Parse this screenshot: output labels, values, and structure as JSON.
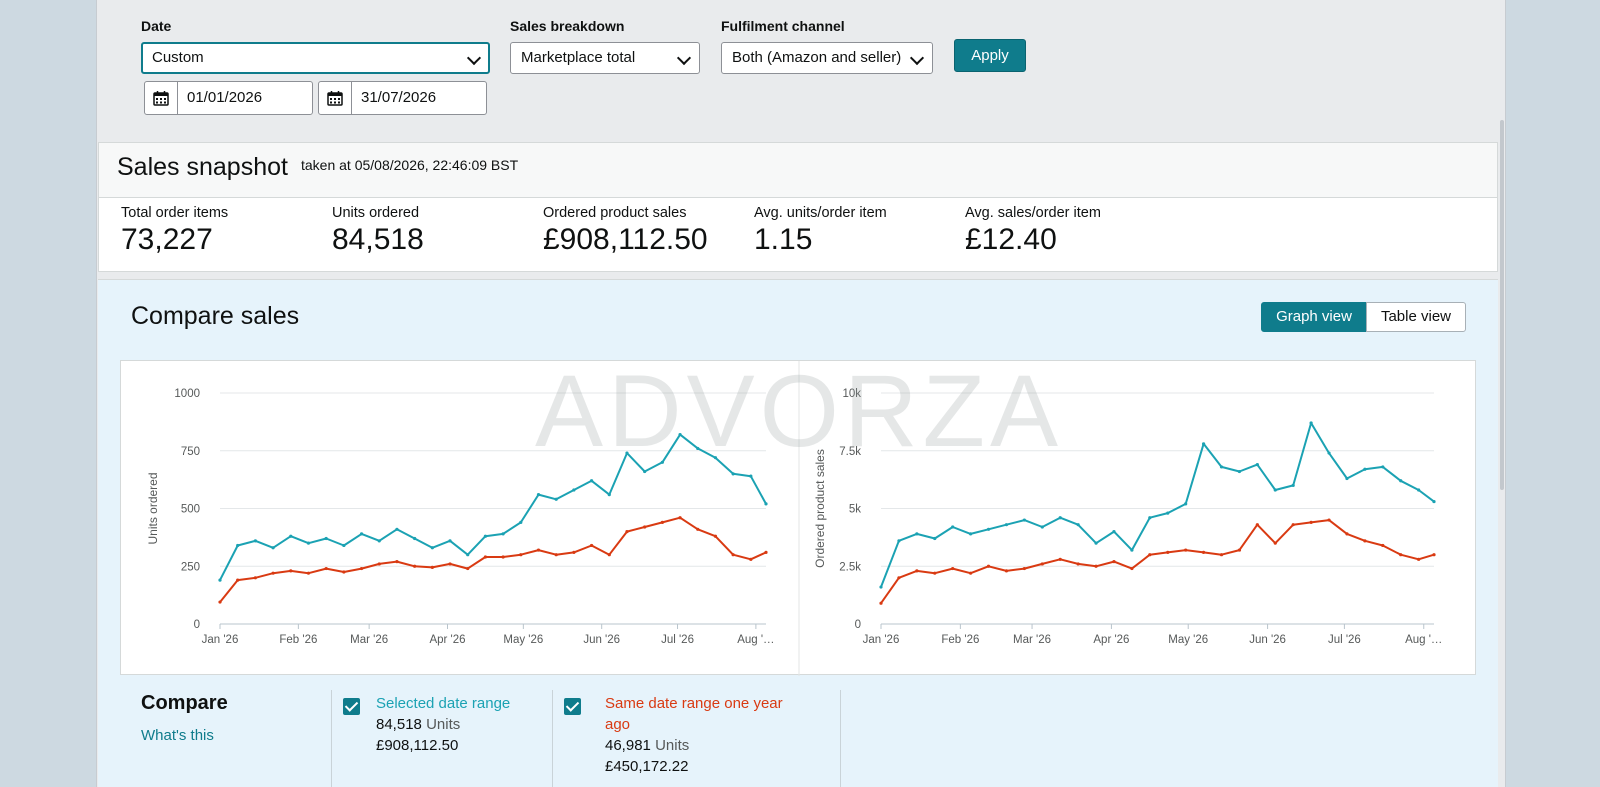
{
  "filters": {
    "date": {
      "label": "Date",
      "value": "Custom",
      "start": "01/01/2026",
      "end": "31/07/2026"
    },
    "breakdown": {
      "label": "Sales breakdown",
      "value": "Marketplace total"
    },
    "channel": {
      "label": "Fulfilment channel",
      "value": "Both (Amazon and seller)"
    },
    "apply_label": "Apply"
  },
  "snapshot": {
    "title": "Sales snapshot",
    "taken_at": "taken at 05/08/2026, 22:46:09 BST",
    "metrics": [
      {
        "label": "Total order items",
        "value": "73,227"
      },
      {
        "label": "Units ordered",
        "value": "84,518"
      },
      {
        "label": "Ordered product sales",
        "value": "£908,112.50"
      },
      {
        "label": "Avg. units/order item",
        "value": "1.15"
      },
      {
        "label": "Avg. sales/order item",
        "value": "£12.40"
      }
    ]
  },
  "compare": {
    "title": "Compare sales",
    "view_toggle": {
      "graph": "Graph view",
      "table": "Table view"
    },
    "watermark": "ADVORZA",
    "legend_title": "Compare",
    "whats_this": "What's this",
    "series": [
      {
        "name": "Selected date range",
        "units": "84,518",
        "units_label": "Units",
        "sales": "£908,112.50",
        "color": "#1ba2b3"
      },
      {
        "name": "Same date range one year ago",
        "units": "46,981",
        "units_label": "Units",
        "sales": "£450,172.22",
        "color": "#d93a12"
      }
    ]
  },
  "chart_data": [
    {
      "type": "line",
      "ylabel": "Units ordered",
      "ylim": [
        0,
        1000
      ],
      "yticks": [
        "0",
        "250",
        "500",
        "750",
        "1000"
      ],
      "x_tick_labels": [
        "Jan '26",
        "Feb '26",
        "Mar '26",
        "Apr '26",
        "May '26",
        "Jun '26",
        "Jul '26",
        "Aug '…"
      ],
      "x_range": [
        "2026-01-01",
        "2026-08-05"
      ],
      "x": [
        "2026-01-01",
        "2026-01-08",
        "2026-01-15",
        "2026-01-22",
        "2026-01-29",
        "2026-02-05",
        "2026-02-12",
        "2026-02-19",
        "2026-02-26",
        "2026-03-05",
        "2026-03-12",
        "2026-03-19",
        "2026-03-26",
        "2026-04-02",
        "2026-04-09",
        "2026-04-16",
        "2026-04-23",
        "2026-04-30",
        "2026-05-07",
        "2026-05-14",
        "2026-05-21",
        "2026-05-28",
        "2026-06-04",
        "2026-06-11",
        "2026-06-18",
        "2026-06-25",
        "2026-07-02",
        "2026-07-09",
        "2026-07-16",
        "2026-07-23",
        "2026-07-30",
        "2026-08-05"
      ],
      "series": [
        {
          "name": "Selected date range",
          "color": "#1ba2b3",
          "values": [
            190,
            340,
            360,
            330,
            380,
            350,
            370,
            340,
            390,
            360,
            410,
            370,
            330,
            360,
            300,
            380,
            390,
            440,
            560,
            540,
            580,
            620,
            560,
            740,
            660,
            700,
            820,
            760,
            720,
            650,
            640,
            520
          ]
        },
        {
          "name": "Same date range one year ago",
          "color": "#d93a12",
          "values": [
            95,
            190,
            200,
            220,
            230,
            220,
            240,
            225,
            240,
            260,
            270,
            250,
            245,
            260,
            240,
            290,
            290,
            300,
            320,
            300,
            310,
            340,
            300,
            400,
            420,
            440,
            460,
            410,
            380,
            300,
            280,
            310
          ]
        }
      ]
    },
    {
      "type": "line",
      "ylabel": "Ordered product sales",
      "ylim": [
        0,
        10000
      ],
      "yticks": [
        "0",
        "2.5k",
        "5k",
        "7.5k",
        "10k"
      ],
      "x_tick_labels": [
        "Jan '26",
        "Feb '26",
        "Mar '26",
        "Apr '26",
        "May '26",
        "Jun '26",
        "Jul '26",
        "Aug '…"
      ],
      "x_range": [
        "2026-01-01",
        "2026-08-05"
      ],
      "x": [
        "2026-01-01",
        "2026-01-08",
        "2026-01-15",
        "2026-01-22",
        "2026-01-29",
        "2026-02-05",
        "2026-02-12",
        "2026-02-19",
        "2026-02-26",
        "2026-03-05",
        "2026-03-12",
        "2026-03-19",
        "2026-03-26",
        "2026-04-02",
        "2026-04-09",
        "2026-04-16",
        "2026-04-23",
        "2026-04-30",
        "2026-05-07",
        "2026-05-14",
        "2026-05-21",
        "2026-05-28",
        "2026-06-04",
        "2026-06-11",
        "2026-06-18",
        "2026-06-25",
        "2026-07-02",
        "2026-07-09",
        "2026-07-16",
        "2026-07-23",
        "2026-07-30",
        "2026-08-05"
      ],
      "series": [
        {
          "name": "Selected date range",
          "color": "#1ba2b3",
          "values": [
            1600,
            3600,
            3900,
            3700,
            4200,
            3900,
            4100,
            4300,
            4500,
            4200,
            4600,
            4300,
            3500,
            4000,
            3200,
            4600,
            4800,
            5200,
            7800,
            6800,
            6600,
            6900,
            5800,
            6000,
            8700,
            7400,
            6300,
            6700,
            6800,
            6200,
            5800,
            5300
          ]
        },
        {
          "name": "Same date range one year ago",
          "color": "#d93a12",
          "values": [
            900,
            2000,
            2300,
            2200,
            2400,
            2200,
            2500,
            2300,
            2400,
            2600,
            2800,
            2600,
            2500,
            2700,
            2400,
            3000,
            3100,
            3200,
            3100,
            3000,
            3200,
            4300,
            3500,
            4300,
            4400,
            4500,
            3900,
            3600,
            3400,
            3000,
            2800,
            3000
          ]
        }
      ]
    }
  ]
}
